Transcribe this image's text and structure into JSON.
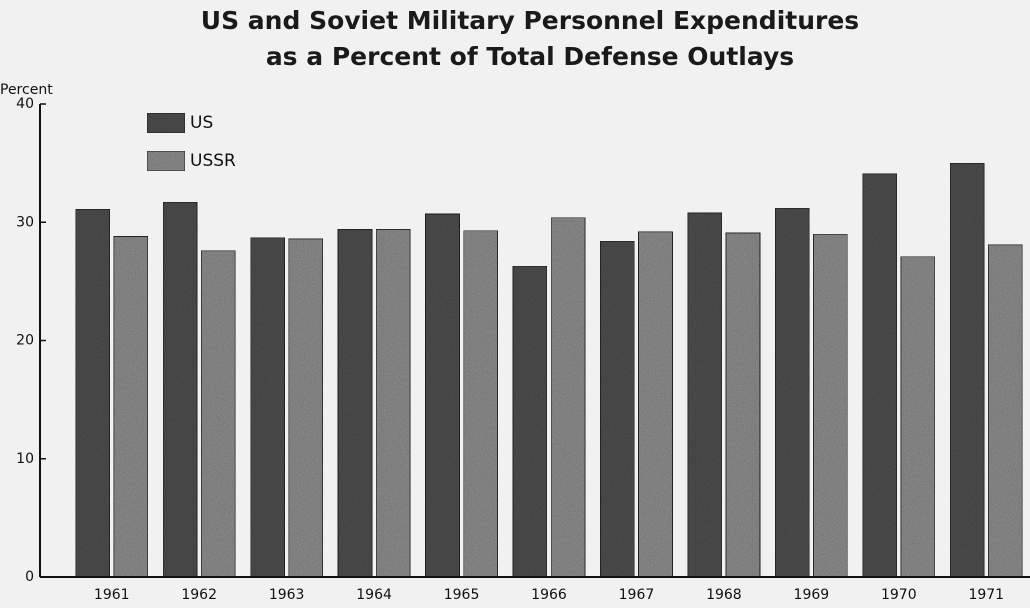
{
  "chart_data": {
    "type": "bar",
    "title": "US and Soviet Military Personnel Expenditures",
    "subtitle": "as a Percent of Total Defense Outlays",
    "y_axis_label": "Percent",
    "categories": [
      "1961",
      "1962",
      "1963",
      "1964",
      "1965",
      "1966",
      "1967",
      "1968",
      "1969",
      "1970",
      "1971"
    ],
    "series": [
      {
        "name": "US",
        "color": "#4d4d4d",
        "values": [
          31.1,
          31.7,
          28.7,
          29.4,
          30.7,
          26.3,
          28.4,
          30.8,
          31.2,
          34.1,
          35.0
        ]
      },
      {
        "name": "USSR",
        "color": "#8a8a8a",
        "values": [
          28.8,
          27.6,
          28.6,
          29.4,
          29.3,
          30.4,
          29.2,
          29.1,
          29.0,
          27.1,
          28.1
        ]
      }
    ],
    "ylim": [
      0,
      40
    ],
    "yticks": [
      0,
      10,
      20,
      30,
      40
    ],
    "grid": false,
    "legend": "top-left"
  }
}
